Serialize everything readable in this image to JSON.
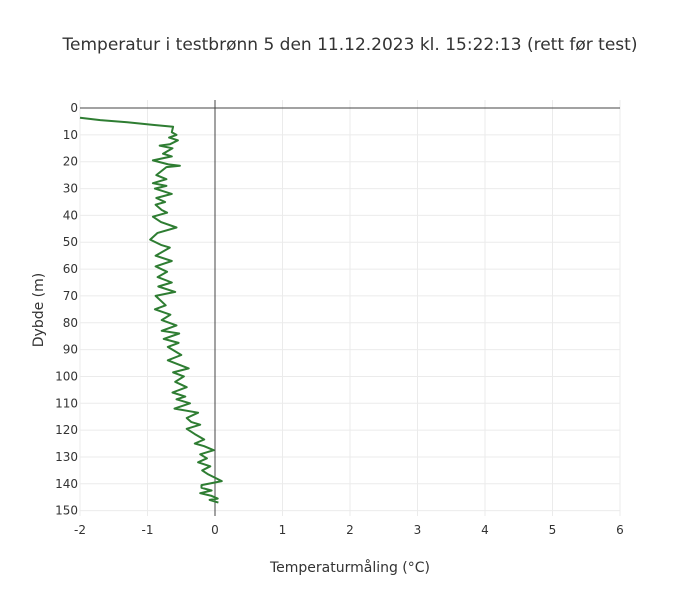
{
  "chart_data": {
    "type": "line",
    "title": "Temperatur i testbrønn 5 den 11.12.2023 kl. 15:22:13 (rett før test)",
    "xlabel": "Temperaturmåling (°C)",
    "ylabel": "Dybde (m)",
    "xlim": [
      -2,
      6
    ],
    "ylim": [
      152,
      -3
    ],
    "y_reversed": true,
    "xticks": [
      -2,
      -1,
      0,
      1,
      2,
      3,
      4,
      5,
      6
    ],
    "yticks": [
      0,
      10,
      20,
      30,
      40,
      50,
      60,
      70,
      80,
      90,
      100,
      110,
      120,
      130,
      140,
      150
    ],
    "grid": true,
    "line_color": "#2e7d32",
    "series": [
      {
        "x": [
          -2.0,
          -1.7,
          -1.3,
          -0.9,
          -0.62,
          -0.64,
          -0.57,
          -0.68,
          -0.55,
          -0.67,
          -0.82,
          -0.63,
          -0.77,
          -0.64,
          -0.92,
          -0.69,
          -0.52,
          -0.72,
          -0.87,
          -0.72,
          -0.92,
          -0.72,
          -0.89,
          -0.64,
          -0.87,
          -0.74,
          -0.88,
          -0.79,
          -0.71,
          -0.92,
          -0.8,
          -0.57,
          -0.85,
          -0.96,
          -0.8,
          -0.67,
          -0.88,
          -0.64,
          -0.88,
          -0.71,
          -0.85,
          -0.64,
          -0.84,
          -0.59,
          -0.88,
          -0.73,
          -0.89,
          -0.66,
          -0.79,
          -0.57,
          -0.79,
          -0.53,
          -0.76,
          -0.54,
          -0.7,
          -0.5,
          -0.7,
          -0.39,
          -0.62,
          -0.46,
          -0.59,
          -0.42,
          -0.63,
          -0.44,
          -0.57,
          -0.37,
          -0.6,
          -0.25,
          -0.42,
          -0.35,
          -0.22,
          -0.42,
          -0.3,
          -0.16,
          -0.3,
          -0.16,
          -0.02,
          -0.22,
          -0.12,
          -0.25,
          -0.07,
          -0.19,
          -0.1,
          0.1,
          -0.2,
          -0.2,
          -0.05,
          -0.22,
          -0.05,
          0.04,
          -0.08,
          0.05
        ],
        "y": [
          3.6,
          4.5,
          5.3,
          6.3,
          7.0,
          9.0,
          10.0,
          11.0,
          12.0,
          13.5,
          14.0,
          15.0,
          17.0,
          18.0,
          19.5,
          21.0,
          21.5,
          22.0,
          25.0,
          26.5,
          28.0,
          29.0,
          30.0,
          32.0,
          33.5,
          35.0,
          36.0,
          38.0,
          39.0,
          40.5,
          42.5,
          44.5,
          46.5,
          49.0,
          51.0,
          52.0,
          55.0,
          57.0,
          59.0,
          61.0,
          63.0,
          65.0,
          66.5,
          68.5,
          70.0,
          73.5,
          75.0,
          77.0,
          79.0,
          81.0,
          83.0,
          84.0,
          86.0,
          87.5,
          89.0,
          92.0,
          94.0,
          97.0,
          98.5,
          100.0,
          102.0,
          104.0,
          106.0,
          107.5,
          108.5,
          110.0,
          112.0,
          113.5,
          115.5,
          117.0,
          118.0,
          119.5,
          121.5,
          123.5,
          125.0,
          126.0,
          127.5,
          129.0,
          130.5,
          132.0,
          133.5,
          135.0,
          136.5,
          139.0,
          140.5,
          141.5,
          142.5,
          143.5,
          144.5,
          145.5,
          146.0,
          147.0
        ]
      }
    ]
  }
}
